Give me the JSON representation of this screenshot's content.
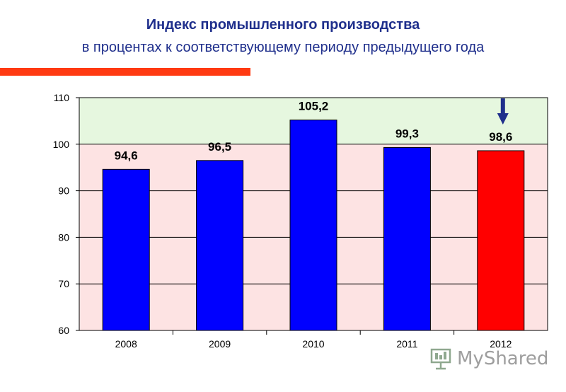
{
  "header": {
    "title": "Индекс промышленного производства",
    "subtitle": "в процентах к соответствующему периоду предыдущего года"
  },
  "chart_data": {
    "type": "bar",
    "categories": [
      "2008",
      "2009",
      "2010",
      "2011",
      "2012"
    ],
    "values": [
      94.6,
      96.5,
      105.2,
      99.3,
      98.6
    ],
    "value_labels": [
      "94,6",
      "96,5",
      "105,2",
      "99,3",
      "98,6"
    ],
    "ylim": [
      60,
      110
    ],
    "yticks": [
      60,
      70,
      80,
      90,
      100,
      110
    ],
    "grid": true,
    "bar_colors": [
      "#0000ff",
      "#0000ff",
      "#0000ff",
      "#0000ff",
      "#ff0000"
    ],
    "bands": [
      {
        "from": 100,
        "to": 110,
        "color": "#e6f7df"
      },
      {
        "from": 60,
        "to": 100,
        "color": "#fde3e3"
      }
    ],
    "highlight_arrow": {
      "category": "2012",
      "icon": "down-arrow-icon",
      "color": "#1f2f8c"
    }
  },
  "watermark": {
    "text": "MyShared",
    "icon": "presentation-board-icon"
  },
  "colors": {
    "title": "#1f2f8c",
    "accent_bar": "#ff3a12"
  }
}
